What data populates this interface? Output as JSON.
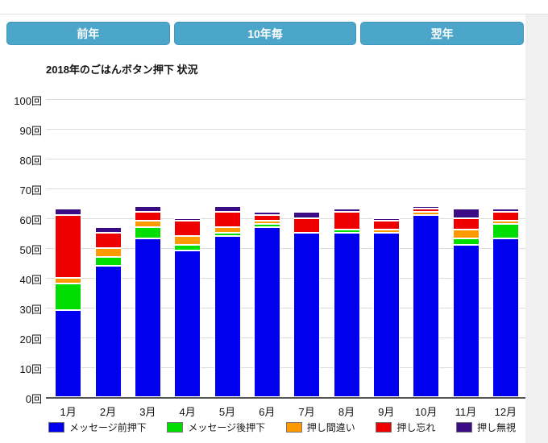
{
  "toolbar": {
    "buttons": [
      {
        "label": "前年"
      },
      {
        "label": "10年毎"
      },
      {
        "label": "翌年"
      }
    ]
  },
  "colors": {
    "button_accent": "#4ba6c9",
    "gridline": "#dcdcdc",
    "axis": "#555555"
  },
  "chart_data": {
    "type": "bar",
    "stacked": true,
    "title": "2018年のごはんボタン押下 状況",
    "categories": [
      "1月",
      "2月",
      "3月",
      "4月",
      "5月",
      "6月",
      "7月",
      "8月",
      "9月",
      "10月",
      "11月",
      "12月"
    ],
    "series": [
      {
        "name": "メッセージ前押下",
        "color": "#0000ee",
        "values": [
          29,
          44,
          53,
          49,
          54,
          57,
          55,
          55,
          55,
          61,
          51,
          53
        ]
      },
      {
        "name": "メッセージ後押下",
        "color": "#00dd00",
        "values": [
          9,
          3,
          4,
          2,
          1,
          1,
          0,
          1,
          0,
          0,
          2,
          5
        ]
      },
      {
        "name": "押し間違い",
        "color": "#ff9900",
        "values": [
          2,
          3,
          2,
          3,
          2,
          1,
          0,
          0,
          1,
          1,
          3,
          1
        ]
      },
      {
        "name": "押し忘れ",
        "color": "#ee0000",
        "values": [
          21,
          5,
          3,
          5,
          5,
          2,
          5,
          6,
          3,
          1,
          4,
          3
        ]
      },
      {
        "name": "押し無視",
        "color": "#3c0c86",
        "values": [
          2,
          2,
          2,
          1,
          2,
          1,
          2,
          1,
          1,
          1,
          3,
          1
        ]
      }
    ],
    "ylim": [
      0,
      100
    ],
    "y_tick_step": 10,
    "y_ticks": [
      "0回",
      "10回",
      "20回",
      "30回",
      "40回",
      "50回",
      "60回",
      "70回",
      "80回",
      "90回",
      "100回"
    ],
    "grid": true,
    "legend_position": "bottom"
  }
}
